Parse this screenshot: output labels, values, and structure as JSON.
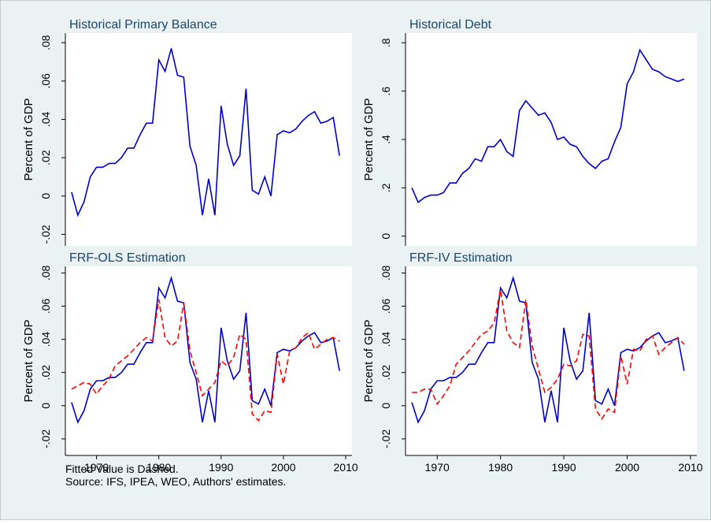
{
  "chart_data": [
    {
      "type": "line",
      "title": "Historical Primary Balance",
      "y_label": "Percent of GDP",
      "x": [
        1966,
        1967,
        1968,
        1969,
        1970,
        1971,
        1972,
        1973,
        1974,
        1975,
        1976,
        1977,
        1978,
        1979,
        1980,
        1981,
        1982,
        1983,
        1984,
        1985,
        1986,
        1987,
        1988,
        1989,
        1990,
        1991,
        1992,
        1993,
        1994,
        1995,
        1996,
        1997,
        1998,
        1999,
        2000,
        2001,
        2002,
        2003,
        2004,
        2005,
        2006,
        2007,
        2008,
        2009
      ],
      "xlim": [
        1965,
        2011
      ],
      "ylim": [
        -0.026,
        0.085
      ],
      "yticks": [
        {
          "value": -0.02,
          "label": "-.02"
        },
        0,
        {
          "value": 0.02,
          "label": ".02"
        },
        {
          "value": 0.04,
          "label": ".04"
        },
        {
          "value": 0.06,
          "label": ".06"
        },
        {
          "value": 0.08,
          "label": ".08"
        }
      ],
      "series": [
        {
          "color": "#0000cc",
          "style": "solid",
          "values": [
            0.002,
            -0.01,
            -0.003,
            0.01,
            0.015,
            0.015,
            0.017,
            0.017,
            0.02,
            0.025,
            0.025,
            0.032,
            0.038,
            0.038,
            0.071,
            0.065,
            0.077,
            0.063,
            0.062,
            0.026,
            0.016,
            -0.01,
            0.009,
            -0.01,
            0.047,
            0.027,
            0.016,
            0.021,
            0.056,
            0.003,
            0.001,
            0.01,
            0.0,
            0.032,
            0.034,
            0.033,
            0.035,
            0.039,
            0.042,
            0.044,
            0.038,
            0.039,
            0.041,
            0.021
          ]
        }
      ]
    },
    {
      "type": "line",
      "title": "Historical Debt",
      "y_label": "Percent of GDP",
      "x": [
        1966,
        1967,
        1968,
        1969,
        1970,
        1971,
        1972,
        1973,
        1974,
        1975,
        1976,
        1977,
        1978,
        1979,
        1980,
        1981,
        1982,
        1983,
        1984,
        1985,
        1986,
        1987,
        1988,
        1989,
        1990,
        1991,
        1992,
        1993,
        1994,
        1995,
        1996,
        1997,
        1998,
        1999,
        2000,
        2001,
        2002,
        2003,
        2004,
        2005,
        2006,
        2007,
        2008,
        2009
      ],
      "xlim": [
        1965,
        2011
      ],
      "ylim": [
        -0.04,
        0.84
      ],
      "yticks": [
        0,
        {
          "value": 0.2,
          "label": ".2"
        },
        {
          "value": 0.4,
          "label": ".4"
        },
        {
          "value": 0.6,
          "label": ".6"
        },
        {
          "value": 0.8,
          "label": ".8"
        }
      ],
      "series": [
        {
          "color": "#0000cc",
          "style": "solid",
          "values": [
            0.2,
            0.14,
            0.16,
            0.17,
            0.17,
            0.18,
            0.22,
            0.22,
            0.26,
            0.28,
            0.32,
            0.31,
            0.37,
            0.37,
            0.4,
            0.35,
            0.33,
            0.52,
            0.56,
            0.53,
            0.5,
            0.51,
            0.47,
            0.4,
            0.41,
            0.38,
            0.37,
            0.33,
            0.3,
            0.28,
            0.31,
            0.32,
            0.39,
            0.45,
            0.63,
            0.68,
            0.77,
            0.73,
            0.69,
            0.68,
            0.66,
            0.65,
            0.64,
            0.65
          ]
        }
      ]
    },
    {
      "type": "line",
      "title": "FRF-OLS Estimation",
      "y_label": "Percent of GDP",
      "x": [
        1966,
        1967,
        1968,
        1969,
        1970,
        1971,
        1972,
        1973,
        1974,
        1975,
        1976,
        1977,
        1978,
        1979,
        1980,
        1981,
        1982,
        1983,
        1984,
        1985,
        1986,
        1987,
        1988,
        1989,
        1990,
        1991,
        1992,
        1993,
        1994,
        1995,
        1996,
        1997,
        1998,
        1999,
        2000,
        2001,
        2002,
        2003,
        2004,
        2005,
        2006,
        2007,
        2008,
        2009
      ],
      "xlim": [
        1965,
        2011
      ],
      "ylim": [
        -0.03,
        0.084
      ],
      "xticks": [
        1970,
        1980,
        1990,
        2000,
        2010
      ],
      "yticks": [
        {
          "value": -0.02,
          "label": "-.02"
        },
        0,
        {
          "value": 0.02,
          "label": ".02"
        },
        {
          "value": 0.04,
          "label": ".04"
        },
        {
          "value": 0.06,
          "label": ".06"
        },
        {
          "value": 0.08,
          "label": ".08"
        }
      ],
      "series": [
        {
          "color": "#0000cc",
          "style": "solid",
          "values": [
            0.002,
            -0.01,
            -0.003,
            0.01,
            0.015,
            0.015,
            0.017,
            0.017,
            0.02,
            0.025,
            0.025,
            0.032,
            0.038,
            0.038,
            0.071,
            0.065,
            0.077,
            0.063,
            0.062,
            0.026,
            0.016,
            -0.01,
            0.009,
            -0.01,
            0.047,
            0.027,
            0.016,
            0.021,
            0.056,
            0.003,
            0.001,
            0.01,
            0.0,
            0.032,
            0.034,
            0.033,
            0.035,
            0.039,
            0.042,
            0.044,
            0.038,
            0.039,
            0.041,
            0.021
          ]
        },
        {
          "color": "#ff0000",
          "style": "dashed",
          "values": [
            0.01,
            0.012,
            0.014,
            0.013,
            0.007,
            0.012,
            0.016,
            0.024,
            0.027,
            0.03,
            0.034,
            0.038,
            0.041,
            0.039,
            0.064,
            0.041,
            0.036,
            0.039,
            0.062,
            0.033,
            0.02,
            0.006,
            0.01,
            0.014,
            0.027,
            0.024,
            0.029,
            0.043,
            0.04,
            -0.005,
            -0.009,
            -0.003,
            -0.004,
            0.031,
            0.013,
            0.033,
            0.035,
            0.041,
            0.044,
            0.034,
            0.037,
            0.04,
            0.041,
            0.039
          ]
        }
      ]
    },
    {
      "type": "line",
      "title": "FRF-IV Estimation",
      "y_label": "Percent of GDP",
      "x": [
        1966,
        1967,
        1968,
        1969,
        1970,
        1971,
        1972,
        1973,
        1974,
        1975,
        1976,
        1977,
        1978,
        1979,
        1980,
        1981,
        1982,
        1983,
        1984,
        1985,
        1986,
        1987,
        1988,
        1989,
        1990,
        1991,
        1992,
        1993,
        1994,
        1995,
        1996,
        1997,
        1998,
        1999,
        2000,
        2001,
        2002,
        2003,
        2004,
        2005,
        2006,
        2007,
        2008,
        2009
      ],
      "xlim": [
        1965,
        2011
      ],
      "ylim": [
        -0.03,
        0.084
      ],
      "xticks": [
        1970,
        1980,
        1990,
        2000,
        2010
      ],
      "yticks": [
        {
          "value": -0.02,
          "label": "-.02"
        },
        0,
        {
          "value": 0.02,
          "label": ".02"
        },
        {
          "value": 0.04,
          "label": ".04"
        },
        {
          "value": 0.06,
          "label": ".06"
        },
        {
          "value": 0.08,
          "label": ".08"
        }
      ],
      "series": [
        {
          "color": "#0000cc",
          "style": "solid",
          "values": [
            0.002,
            -0.01,
            -0.003,
            0.01,
            0.015,
            0.015,
            0.017,
            0.017,
            0.02,
            0.025,
            0.025,
            0.032,
            0.038,
            0.038,
            0.071,
            0.065,
            0.077,
            0.063,
            0.062,
            0.026,
            0.016,
            -0.01,
            0.009,
            -0.01,
            0.047,
            0.027,
            0.016,
            0.021,
            0.056,
            0.003,
            0.001,
            0.01,
            0.0,
            0.032,
            0.034,
            0.033,
            0.035,
            0.039,
            0.042,
            0.044,
            0.038,
            0.039,
            0.041,
            0.021
          ]
        },
        {
          "color": "#ff0000",
          "style": "dashed",
          "values": [
            0.008,
            0.008,
            0.01,
            0.01,
            0.001,
            0.006,
            0.012,
            0.025,
            0.029,
            0.033,
            0.038,
            0.043,
            0.045,
            0.05,
            0.07,
            0.045,
            0.038,
            0.035,
            0.064,
            0.036,
            0.022,
            0.008,
            0.011,
            0.016,
            0.025,
            0.024,
            0.027,
            0.043,
            0.042,
            -0.002,
            -0.008,
            -0.002,
            -0.004,
            0.03,
            0.013,
            0.034,
            0.033,
            0.04,
            0.042,
            0.031,
            0.035,
            0.038,
            0.041,
            0.037
          ]
        }
      ]
    }
  ],
  "notes": [
    "Fitted Value is Dashed.",
    "Source: IFS, IPEA, WEO, Authors' estimates."
  ]
}
